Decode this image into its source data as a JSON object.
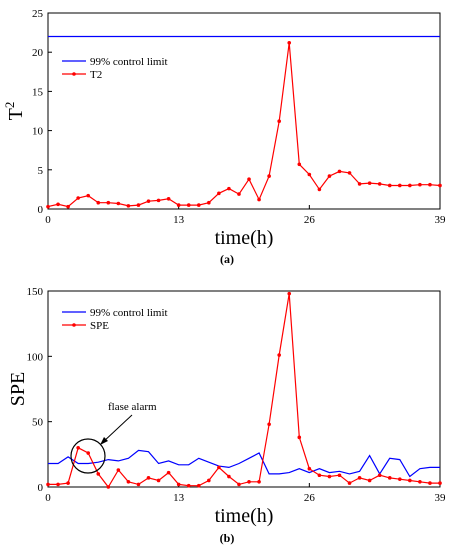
{
  "chart_data": [
    {
      "type": "line",
      "xlabel": "time(h)",
      "ylabel": "T",
      "ylabel_sup": "2",
      "xlim": [
        0,
        39
      ],
      "ylim": [
        0,
        25
      ],
      "xticks": [
        "0",
        "13",
        "26",
        "39"
      ],
      "yticks": [
        "0",
        "5",
        "10",
        "15",
        "20",
        "25"
      ],
      "caption": "(a)",
      "legend_position": "top-left",
      "grid": false,
      "series": [
        {
          "name": "99% control limit",
          "color": "#0000ff",
          "marker": false,
          "x": [
            0,
            39
          ],
          "y": [
            22,
            22
          ]
        },
        {
          "name": "T2",
          "color": "#ff0000",
          "marker": true,
          "x": [
            0,
            1,
            2,
            3,
            4,
            5,
            6,
            7,
            8,
            9,
            10,
            11,
            12,
            13,
            14,
            15,
            16,
            17,
            18,
            19,
            20,
            21,
            22,
            23,
            24,
            25,
            26,
            27,
            28,
            29,
            30,
            31,
            32,
            33,
            34,
            35,
            36,
            37,
            38,
            39
          ],
          "y": [
            0.3,
            0.6,
            0.3,
            1.4,
            1.7,
            0.8,
            0.8,
            0.7,
            0.4,
            0.5,
            1.0,
            1.1,
            1.3,
            0.5,
            0.5,
            0.5,
            0.8,
            2.0,
            2.6,
            1.9,
            3.8,
            1.2,
            4.2,
            11.2,
            21.2,
            5.7,
            4.4,
            2.5,
            4.2,
            4.8,
            4.6,
            3.2,
            3.3,
            3.2,
            3.0,
            3.0,
            3.0,
            3.1,
            3.1,
            3.0
          ]
        }
      ]
    },
    {
      "type": "line",
      "xlabel": "time(h)",
      "ylabel": "SPE",
      "xlim": [
        0,
        39
      ],
      "ylim": [
        0,
        150
      ],
      "xticks": [
        "0",
        "13",
        "26",
        "39"
      ],
      "yticks": [
        "0",
        "50",
        "100",
        "150"
      ],
      "caption": "(b)",
      "legend_position": "top-left",
      "grid": false,
      "annotation": "flase alarm",
      "annotation_target": {
        "x": 4,
        "y": 28
      },
      "series": [
        {
          "name": "99% control limit",
          "color": "#0000ff",
          "marker": false,
          "x": [
            0,
            1,
            2,
            3,
            4,
            5,
            6,
            7,
            8,
            9,
            10,
            11,
            12,
            13,
            14,
            15,
            16,
            17,
            18,
            19,
            20,
            21,
            22,
            23,
            24,
            25,
            26,
            27,
            28,
            29,
            30,
            31,
            32,
            33,
            34,
            35,
            36,
            37,
            38,
            39
          ],
          "y": [
            18,
            18,
            23,
            18,
            18,
            19,
            21,
            20,
            22,
            28,
            27,
            18,
            20,
            17,
            17,
            22,
            19,
            16,
            15,
            18,
            22,
            26,
            10,
            10,
            11,
            14,
            11,
            14,
            11,
            12,
            10,
            12,
            24,
            10,
            22,
            21,
            8,
            14,
            15,
            15
          ]
        },
        {
          "name": "SPE",
          "color": "#ff0000",
          "marker": true,
          "x": [
            0,
            1,
            2,
            3,
            4,
            5,
            6,
            7,
            8,
            9,
            10,
            11,
            12,
            13,
            14,
            15,
            16,
            17,
            18,
            19,
            20,
            21,
            22,
            23,
            24,
            25,
            26,
            27,
            28,
            29,
            30,
            31,
            32,
            33,
            34,
            35,
            36,
            37,
            38,
            39
          ],
          "y": [
            2,
            2,
            3,
            30,
            26,
            10,
            0,
            13,
            4,
            2,
            7,
            5,
            11,
            2,
            1,
            1,
            5,
            15,
            8,
            2,
            4,
            4,
            48,
            101,
            148,
            38,
            14,
            9,
            8,
            9,
            3,
            7,
            5,
            9,
            7,
            6,
            5,
            4,
            3,
            3
          ]
        }
      ]
    }
  ]
}
